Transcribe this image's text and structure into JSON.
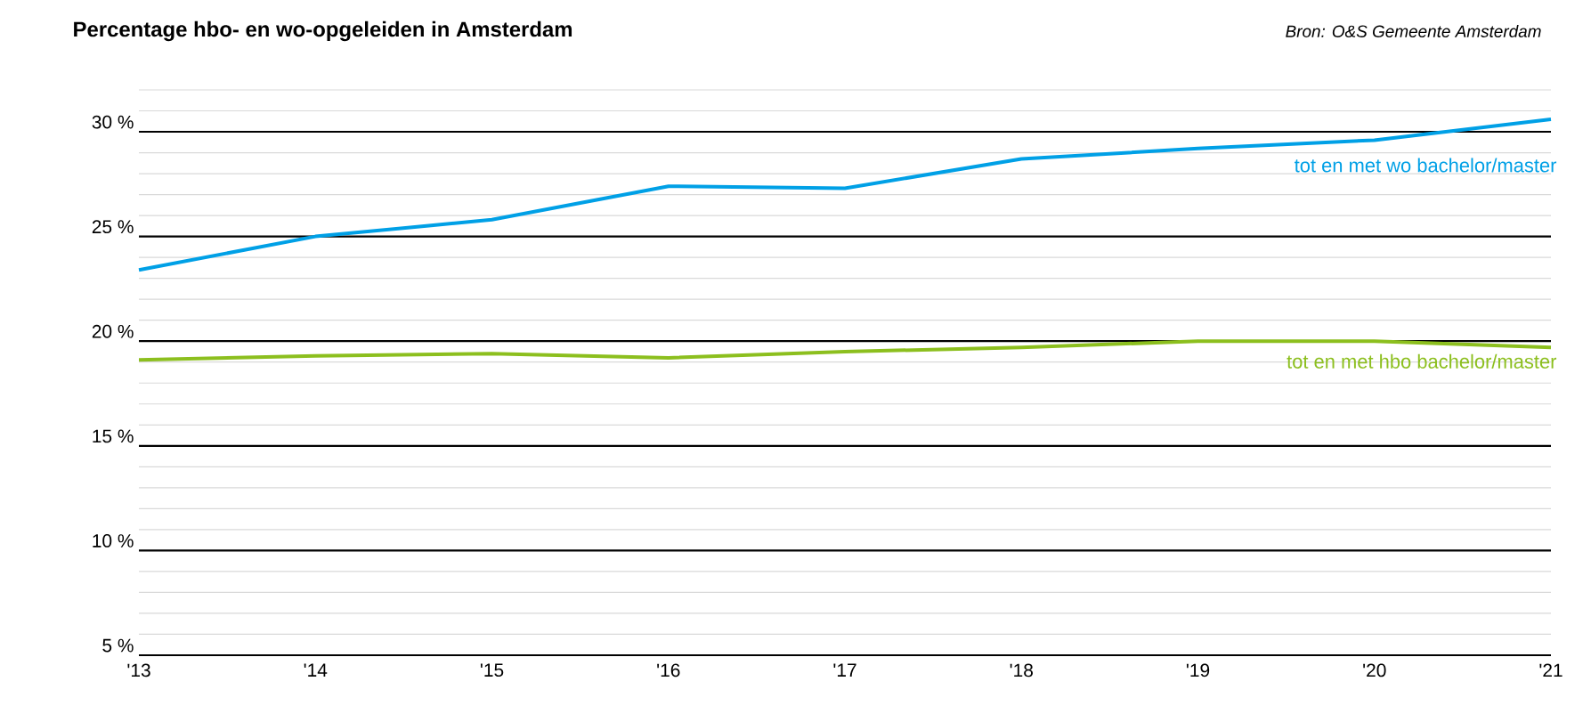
{
  "chart_data": {
    "type": "line",
    "title": "Percentage hbo- en wo-opgeleiden in Amsterdam",
    "annotations": [
      "Bron: O&S Gemeente Amsterdam"
    ],
    "categories": [
      "'13",
      "'14",
      "'15",
      "'16",
      "'17",
      "'18",
      "'19",
      "'20",
      "'21"
    ],
    "series": [
      {
        "name": "tot en met wo bachelor/master",
        "color": "#00a0e6",
        "values": [
          23.4,
          25.0,
          25.8,
          27.4,
          27.3,
          28.7,
          29.2,
          29.6,
          30.6
        ]
      },
      {
        "name": "tot en met hbo bachelor/master",
        "color": "#8cbf1e",
        "values": [
          19.1,
          19.3,
          19.4,
          19.2,
          19.5,
          19.7,
          20.0,
          20.0,
          19.7
        ]
      }
    ],
    "ylim": [
      5,
      32
    ],
    "yticks": [
      {
        "value": 5,
        "label": "5 %"
      },
      {
        "value": 10,
        "label": "10 %"
      },
      {
        "value": 15,
        "label": "15 %"
      },
      {
        "value": 20,
        "label": "20 %"
      },
      {
        "value": 25,
        "label": "25 %"
      },
      {
        "value": 30,
        "label": "30 %"
      }
    ],
    "grid": true,
    "marker": "none",
    "line_style": "solid"
  }
}
